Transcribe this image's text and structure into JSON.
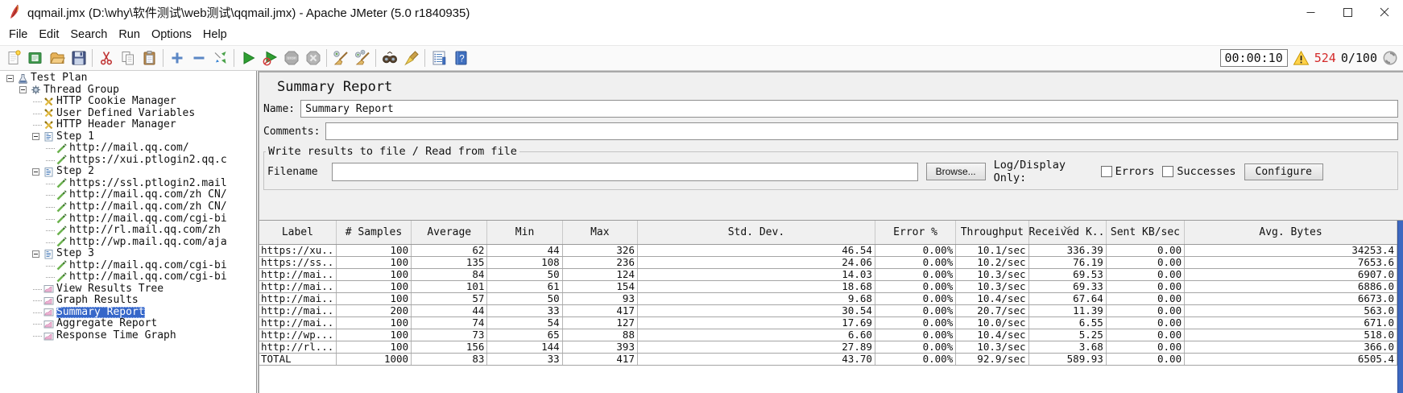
{
  "window": {
    "title": "qqmail.jmx (D:\\why\\软件测试\\web测试\\qqmail.jmx) - Apache JMeter (5.0 r1840935)",
    "controls": [
      "minimize",
      "maximize",
      "close"
    ]
  },
  "menu": {
    "items": [
      "File",
      "Edit",
      "Search",
      "Run",
      "Options",
      "Help"
    ]
  },
  "toolbar": {
    "buttons": [
      {
        "name": "new-file"
      },
      {
        "name": "open-template"
      },
      {
        "name": "open-folder"
      },
      {
        "name": "save"
      },
      {
        "name": "cut"
      },
      {
        "name": "copy"
      },
      {
        "name": "paste"
      },
      {
        "name": "add"
      },
      {
        "name": "remove"
      },
      {
        "name": "toggle"
      },
      {
        "name": "start"
      },
      {
        "name": "start-no-pauses"
      },
      {
        "name": "stop"
      },
      {
        "name": "shutdown"
      },
      {
        "name": "clear"
      },
      {
        "name": "clear-all"
      },
      {
        "name": "search"
      },
      {
        "name": "search-reset"
      },
      {
        "name": "function-helper"
      },
      {
        "name": "help"
      }
    ],
    "status": {
      "elapsed": "00:00:10",
      "error_count": "524",
      "threads": "0/100"
    }
  },
  "colors": {
    "selection_blue": "#3667c9",
    "error_red": "#d42a2a",
    "warning_yellow": "#ffd24a",
    "scrollbar_blue": "#3e68c0"
  },
  "tree": {
    "items": [
      {
        "label": "Test Plan",
        "depth": 0,
        "icon": "test-plan",
        "expander": true,
        "selected": false
      },
      {
        "label": "Thread Group",
        "depth": 1,
        "icon": "thread-group",
        "expander": true,
        "selected": false
      },
      {
        "label": "HTTP Cookie Manager",
        "depth": 2,
        "icon": "manager",
        "expander": false,
        "selected": false
      },
      {
        "label": "User Defined Variables",
        "depth": 2,
        "icon": "manager",
        "expander": false,
        "selected": false
      },
      {
        "label": "HTTP Header Manager",
        "depth": 2,
        "icon": "manager",
        "expander": false,
        "selected": false
      },
      {
        "label": "Step 1",
        "depth": 2,
        "icon": "step",
        "expander": true,
        "selected": false
      },
      {
        "label": "http://mail.qq.com/",
        "depth": 3,
        "icon": "sampler",
        "expander": false,
        "selected": false
      },
      {
        "label": "https://xui.ptlogin2.qq.c",
        "depth": 3,
        "icon": "sampler",
        "expander": false,
        "selected": false
      },
      {
        "label": "Step 2",
        "depth": 2,
        "icon": "step",
        "expander": true,
        "selected": false
      },
      {
        "label": "https://ssl.ptlogin2.mail",
        "depth": 3,
        "icon": "sampler",
        "expander": false,
        "selected": false
      },
      {
        "label": "http://mail.qq.com/zh CN/",
        "depth": 3,
        "icon": "sampler",
        "expander": false,
        "selected": false
      },
      {
        "label": "http://mail.qq.com/zh CN/",
        "depth": 3,
        "icon": "sampler",
        "expander": false,
        "selected": false
      },
      {
        "label": "http://mail.qq.com/cgi-bi",
        "depth": 3,
        "icon": "sampler",
        "expander": false,
        "selected": false
      },
      {
        "label": "http://rl.mail.qq.com/zh",
        "depth": 3,
        "icon": "sampler",
        "expander": false,
        "selected": false
      },
      {
        "label": "http://wp.mail.qq.com/aja",
        "depth": 3,
        "icon": "sampler",
        "expander": false,
        "selected": false
      },
      {
        "label": "Step 3",
        "depth": 2,
        "icon": "step",
        "expander": true,
        "selected": false
      },
      {
        "label": "http://mail.qq.com/cgi-bi",
        "depth": 3,
        "icon": "sampler",
        "expander": false,
        "selected": false
      },
      {
        "label": "http://mail.qq.com/cgi-bi",
        "depth": 3,
        "icon": "sampler",
        "expander": false,
        "selected": false
      },
      {
        "label": "View Results Tree",
        "depth": 2,
        "icon": "listener",
        "expander": false,
        "selected": false
      },
      {
        "label": "Graph Results",
        "depth": 2,
        "icon": "listener",
        "expander": false,
        "selected": false
      },
      {
        "label": "Summary Report",
        "depth": 2,
        "icon": "listener",
        "expander": false,
        "selected": true
      },
      {
        "label": "Aggregate Report",
        "depth": 2,
        "icon": "listener",
        "expander": false,
        "selected": false
      },
      {
        "label": "Response Time Graph",
        "depth": 2,
        "icon": "listener",
        "expander": false,
        "selected": false
      }
    ]
  },
  "main": {
    "title": "Summary Report",
    "name_label": "Name:",
    "name_value": "Summary Report",
    "comments_label": "Comments:",
    "comments_value": "",
    "file_group": {
      "legend": "Write results to file / Read from file",
      "filename_label": "Filename",
      "filename_value": "",
      "browse_label": "Browse...",
      "log_display_label": "Log/Display Only:",
      "errors_label": "Errors",
      "errors_checked": false,
      "successes_label": "Successes",
      "successes_checked": false,
      "configure_label": "Configure"
    },
    "table": {
      "columns": [
        {
          "label": "Label",
          "sorted": false
        },
        {
          "label": "# Samples",
          "sorted": false
        },
        {
          "label": "Average",
          "sorted": false
        },
        {
          "label": "Min",
          "sorted": false
        },
        {
          "label": "Max",
          "sorted": false
        },
        {
          "label": "Std. Dev.",
          "sorted": false
        },
        {
          "label": "Error %",
          "sorted": false
        },
        {
          "label": "Throughput",
          "sorted": false
        },
        {
          "label": "Received K...",
          "sorted": true
        },
        {
          "label": "Sent KB/sec",
          "sorted": false
        },
        {
          "label": "Avg. Bytes",
          "sorted": false
        }
      ],
      "rows": [
        [
          "https://xu...",
          "100",
          "62",
          "44",
          "326",
          "46.54",
          "0.00%",
          "10.1/sec",
          "336.39",
          "0.00",
          "34253.4"
        ],
        [
          "https://ss...",
          "100",
          "135",
          "108",
          "236",
          "24.06",
          "0.00%",
          "10.2/sec",
          "76.19",
          "0.00",
          "7653.6"
        ],
        [
          "http://mai...",
          "100",
          "84",
          "50",
          "124",
          "14.03",
          "0.00%",
          "10.3/sec",
          "69.53",
          "0.00",
          "6907.0"
        ],
        [
          "http://mai...",
          "100",
          "101",
          "61",
          "154",
          "18.68",
          "0.00%",
          "10.3/sec",
          "69.33",
          "0.00",
          "6886.0"
        ],
        [
          "http://mai...",
          "100",
          "57",
          "50",
          "93",
          "9.68",
          "0.00%",
          "10.4/sec",
          "67.64",
          "0.00",
          "6673.0"
        ],
        [
          "http://mai...",
          "200",
          "44",
          "33",
          "417",
          "30.54",
          "0.00%",
          "20.7/sec",
          "11.39",
          "0.00",
          "563.0"
        ],
        [
          "http://mai...",
          "100",
          "74",
          "54",
          "127",
          "17.69",
          "0.00%",
          "10.0/sec",
          "6.55",
          "0.00",
          "671.0"
        ],
        [
          "http://wp....",
          "100",
          "73",
          "65",
          "88",
          "6.60",
          "0.00%",
          "10.4/sec",
          "5.25",
          "0.00",
          "518.0"
        ],
        [
          "http://rl....",
          "100",
          "156",
          "144",
          "393",
          "27.89",
          "0.00%",
          "10.3/sec",
          "3.68",
          "0.00",
          "366.0"
        ],
        [
          "TOTAL",
          "1000",
          "83",
          "33",
          "417",
          "43.70",
          "0.00%",
          "92.9/sec",
          "589.93",
          "0.00",
          "6505.4"
        ]
      ]
    }
  }
}
